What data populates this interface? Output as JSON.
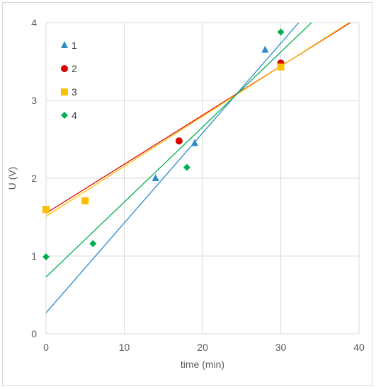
{
  "chart_data": {
    "type": "scatter",
    "xlabel": "time (min)",
    "ylabel": "U (V)",
    "xlim": [
      0,
      40
    ],
    "ylim": [
      0,
      4
    ],
    "xticks": [
      0,
      10,
      20,
      30,
      40
    ],
    "yticks": [
      0,
      1,
      2,
      3,
      4
    ],
    "grid": true,
    "legend_position": "top-left",
    "series": [
      {
        "name": "1",
        "marker": "triangle",
        "color": "#2e8bc9",
        "points": [
          [
            14,
            2.0
          ],
          [
            19,
            2.45
          ],
          [
            28,
            3.65
          ]
        ],
        "trendline": {
          "intercept": 0.27,
          "slope": 0.1155
        }
      },
      {
        "name": "2",
        "marker": "circle",
        "color": "#e00000",
        "points": [
          [
            0,
            1.6
          ],
          [
            17,
            2.48
          ],
          [
            30,
            3.48
          ]
        ],
        "trendline": {
          "intercept": 1.55,
          "slope": 0.063
        }
      },
      {
        "name": "3",
        "marker": "square",
        "color": "#ffc000",
        "points": [
          [
            0,
            1.6
          ],
          [
            5,
            1.71
          ],
          [
            30,
            3.43
          ]
        ],
        "trendline": {
          "intercept": 1.51,
          "slope": 0.0643
        }
      },
      {
        "name": "4",
        "marker": "diamond",
        "color": "#00b050",
        "points": [
          [
            0,
            0.99
          ],
          [
            6,
            1.16
          ],
          [
            18,
            2.14
          ],
          [
            30,
            3.88
          ]
        ],
        "trendline": {
          "intercept": 0.73,
          "slope": 0.0964
        }
      }
    ]
  }
}
